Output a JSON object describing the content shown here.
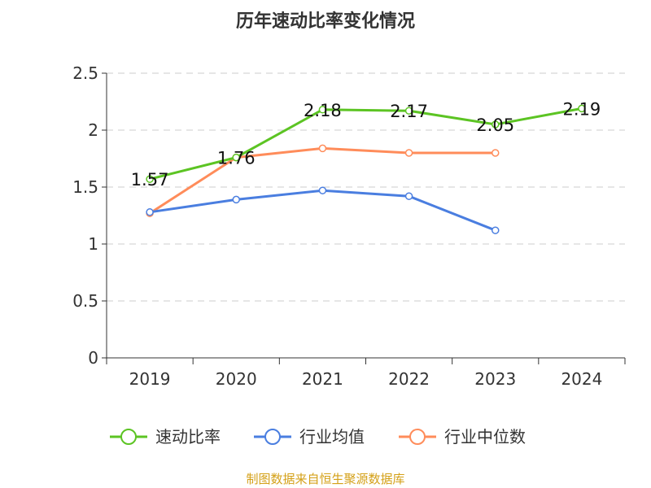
{
  "chart_data": {
    "type": "line",
    "title": "历年速动比率变化情况",
    "categories": [
      "2019",
      "2020",
      "2021",
      "2022",
      "2023",
      "2024"
    ],
    "ylim": [
      0,
      2.5
    ],
    "yticks": [
      "0",
      "0.5",
      "1",
      "1.5",
      "2",
      "2.5"
    ],
    "ytick_values": [
      0,
      0.5,
      1,
      1.5,
      2,
      2.5
    ],
    "grid": true,
    "legend_position": "bottom",
    "series": [
      {
        "name": "速动比率",
        "color": "#5cc423",
        "values": [
          1.57,
          1.76,
          2.18,
          2.17,
          2.05,
          2.19
        ],
        "labels": [
          "1.57",
          "1.76",
          "2.18",
          "2.17",
          "2.05",
          "2.19"
        ]
      },
      {
        "name": "行业均值",
        "color": "#4a7ee0",
        "values": [
          1.28,
          1.39,
          1.47,
          1.42,
          1.12,
          null
        ]
      },
      {
        "name": "行业中位数",
        "color": "#ff8c5a",
        "values": [
          1.27,
          1.76,
          1.84,
          1.8,
          1.8,
          null
        ]
      }
    ],
    "source": "制图数据来自恒生聚源数据库"
  }
}
